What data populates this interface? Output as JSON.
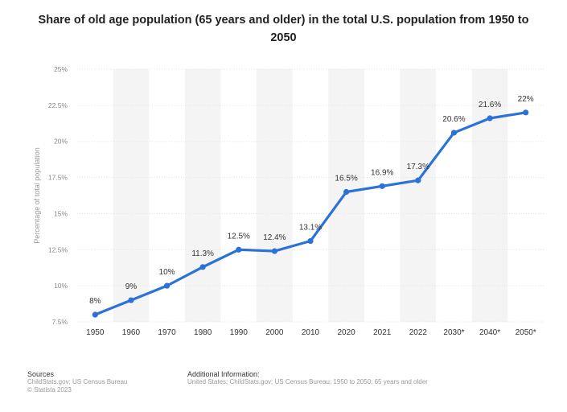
{
  "chart_data": {
    "type": "line",
    "title": "Share of old age population (65 years and older) in the total U.S. population from 1950 to 2050",
    "ylabel": "Percentage of total population",
    "xlabel": "",
    "categories": [
      "1950",
      "1960",
      "1970",
      "1980",
      "1990",
      "2000",
      "2010",
      "2020",
      "2021",
      "2022",
      "2030*",
      "2040*",
      "2050*"
    ],
    "series": [
      {
        "values": [
          8,
          9,
          10,
          11.3,
          12.5,
          12.4,
          13.1,
          16.5,
          16.9,
          17.3,
          20.6,
          21.6,
          22
        ],
        "labels": [
          "8%",
          "9%",
          "10%",
          "11.3%",
          "12.5%",
          "12.4%",
          "13.1%",
          "16.5%",
          "16.9%",
          "17.3%",
          "20.6%",
          "21.6%",
          "22%"
        ]
      }
    ],
    "ylim": [
      7.5,
      25
    ],
    "yticks": [
      7.5,
      10,
      12.5,
      15,
      17.5,
      20,
      22.5,
      25
    ],
    "ytick_labels": [
      "7.5%",
      "10%",
      "12.5%",
      "15%",
      "17.5%",
      "20%",
      "22.5%",
      "25%"
    ],
    "grid": true,
    "line_color": "#2b72d8",
    "band_color": "#f4f4f4"
  },
  "footer": {
    "sources_heading": "Sources",
    "sources_line1": "ChildStats.gov; US Census Bureau",
    "sources_line2": "© Statista 2023",
    "info_heading": "Additional Information:",
    "info_line1": "United States; ChildStats.gov; US Census Bureau; 1950 to 2050; 65 years and older"
  }
}
